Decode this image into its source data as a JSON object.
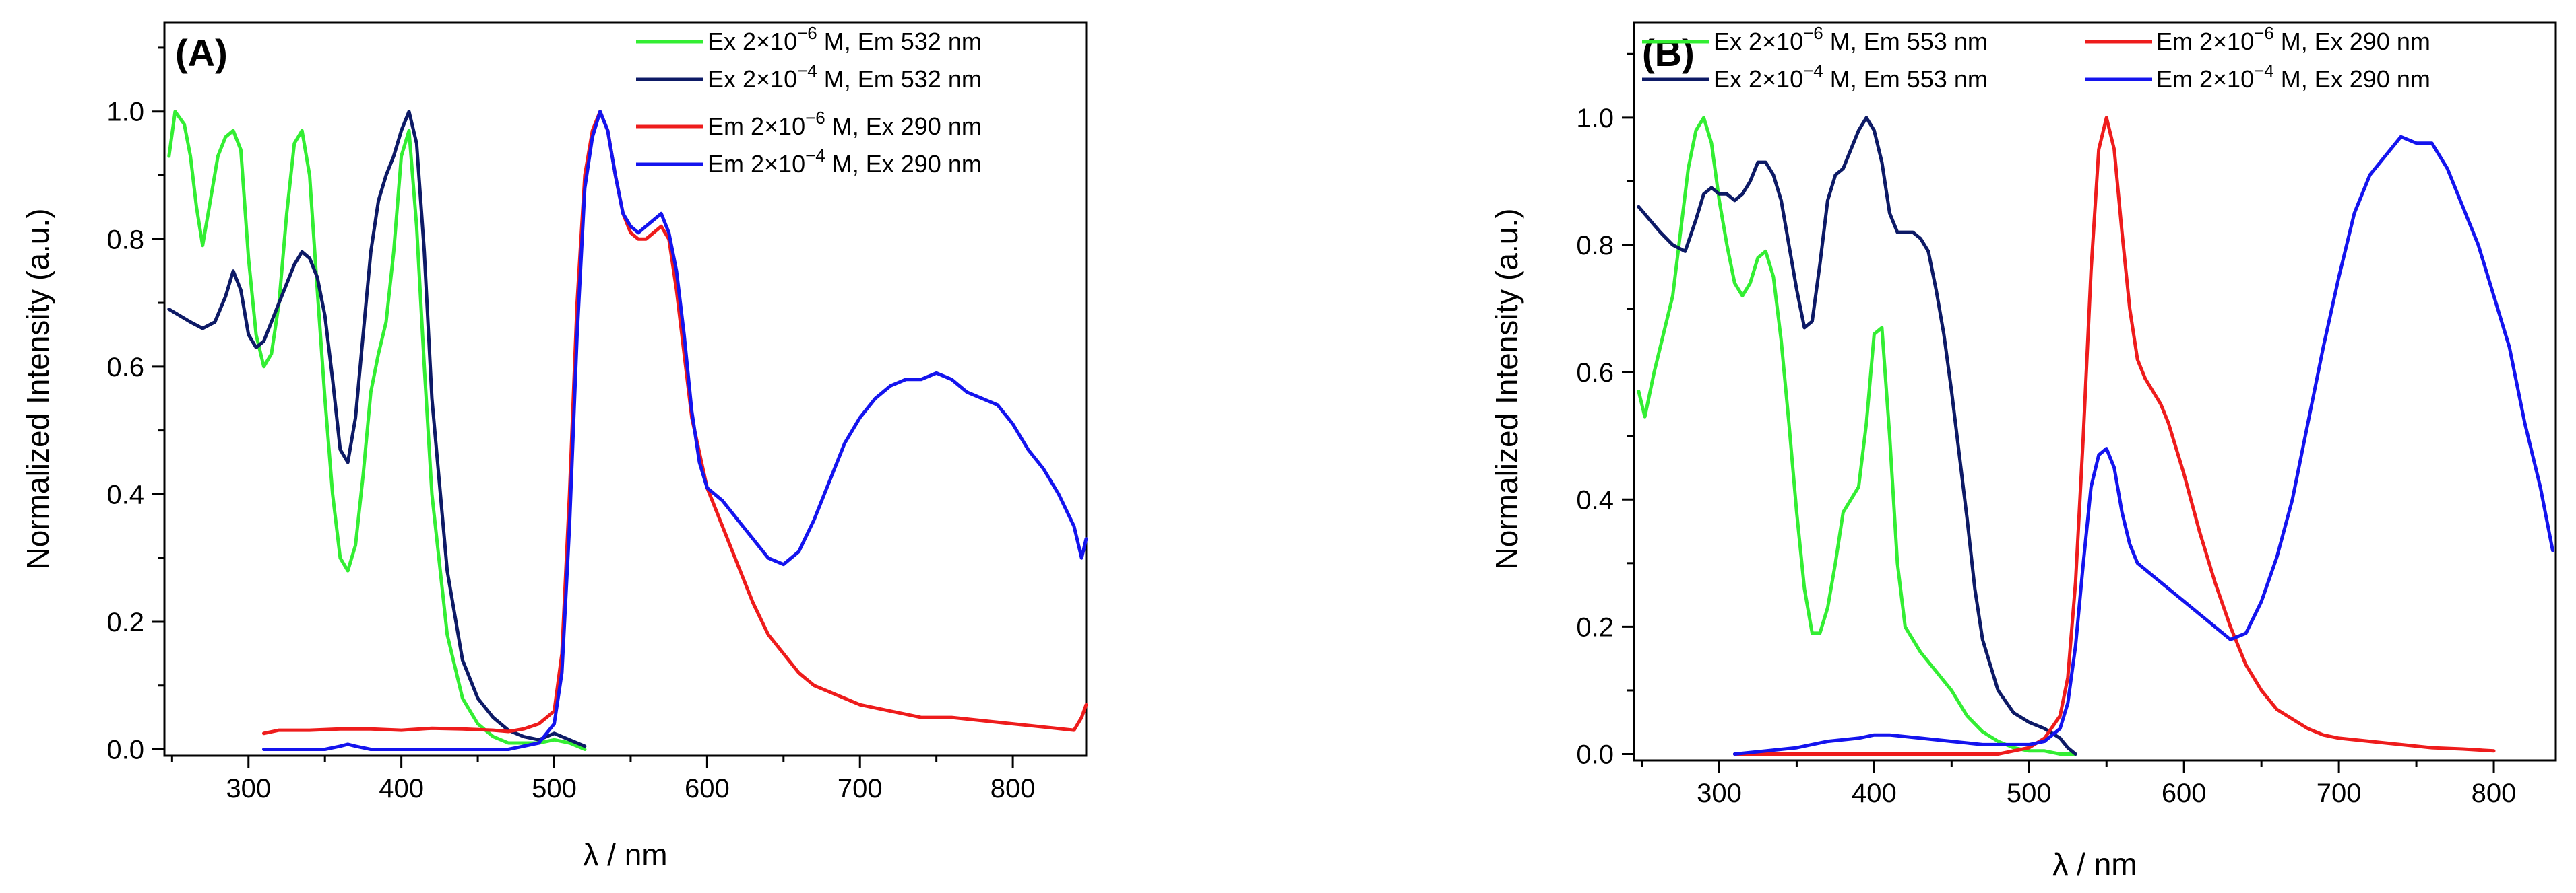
{
  "chart_data": [
    {
      "type": "line",
      "panel_label": "(A)",
      "xlabel": "λ / nm",
      "ylabel": "Normalized Intensity (a.u.)",
      "xlim": [
        245,
        848
      ],
      "ylim": [
        -0.01,
        1.14
      ],
      "xticks": [
        300,
        400,
        500,
        600,
        700,
        800
      ],
      "xtick_labels": [
        "300",
        "400",
        "500",
        "600",
        "700",
        "800"
      ],
      "yticks": [
        0.0,
        0.2,
        0.4,
        0.6,
        0.8,
        1.0
      ],
      "ytick_labels": [
        "0.0",
        "0.2",
        "0.4",
        "0.6",
        "0.8",
        "1.0"
      ],
      "grid": false,
      "legend": {
        "placement": "top-right",
        "entries": [
          {
            "series": 0,
            "prefix": "Ex 2×10",
            "sup": "−6",
            "suffix": " M, Em 532 nm"
          },
          {
            "series": 1,
            "prefix": "Ex 2×10",
            "sup": "−4",
            "suffix": " M, Em 532 nm"
          },
          {
            "series": 2,
            "prefix": "Em 2×10",
            "sup": "−6",
            "suffix": " M, Ex 290 nm"
          },
          {
            "series": 3,
            "prefix": "Em 2×10",
            "sup": "−4",
            "suffix": " M, Ex 290 nm"
          }
        ]
      },
      "series": [
        {
          "name": "Ex 2×10⁻⁶ M, Em 532 nm",
          "color": "#33ee33",
          "x": [
            248,
            252,
            258,
            262,
            266,
            270,
            275,
            280,
            285,
            290,
            295,
            300,
            305,
            310,
            315,
            320,
            325,
            330,
            335,
            340,
            345,
            350,
            355,
            360,
            365,
            370,
            375,
            380,
            385,
            390,
            395,
            400,
            405,
            410,
            415,
            420,
            430,
            440,
            450,
            460,
            470,
            480,
            490,
            500,
            510,
            520
          ],
          "y": [
            0.93,
            1.0,
            0.98,
            0.93,
            0.85,
            0.79,
            0.86,
            0.93,
            0.96,
            0.97,
            0.94,
            0.77,
            0.65,
            0.6,
            0.62,
            0.7,
            0.84,
            0.95,
            0.97,
            0.9,
            0.72,
            0.55,
            0.4,
            0.3,
            0.28,
            0.32,
            0.43,
            0.56,
            0.62,
            0.67,
            0.78,
            0.93,
            0.97,
            0.82,
            0.6,
            0.4,
            0.18,
            0.08,
            0.04,
            0.02,
            0.01,
            0.01,
            0.01,
            0.015,
            0.01,
            0.0
          ]
        },
        {
          "name": "Ex 2×10⁻⁴ M, Em 532 nm",
          "color": "#0d1a66",
          "x": [
            248,
            255,
            262,
            270,
            278,
            285,
            290,
            295,
            300,
            305,
            310,
            315,
            320,
            325,
            330,
            335,
            340,
            345,
            350,
            355,
            360,
            365,
            370,
            375,
            380,
            385,
            390,
            395,
            400,
            405,
            410,
            415,
            420,
            430,
            440,
            450,
            460,
            470,
            480,
            490,
            500,
            510,
            520
          ],
          "y": [
            0.69,
            0.68,
            0.67,
            0.66,
            0.67,
            0.71,
            0.75,
            0.72,
            0.65,
            0.63,
            0.64,
            0.67,
            0.7,
            0.73,
            0.76,
            0.78,
            0.77,
            0.74,
            0.68,
            0.58,
            0.47,
            0.45,
            0.52,
            0.65,
            0.78,
            0.86,
            0.9,
            0.93,
            0.97,
            1.0,
            0.95,
            0.78,
            0.55,
            0.28,
            0.14,
            0.08,
            0.05,
            0.03,
            0.02,
            0.015,
            0.025,
            0.015,
            0.005
          ]
        },
        {
          "name": "Em 2×10⁻⁶ M, Ex 290 nm",
          "color": "#ee1c1c",
          "x": [
            310,
            320,
            340,
            360,
            380,
            400,
            420,
            440,
            460,
            470,
            480,
            490,
            500,
            505,
            510,
            515,
            520,
            525,
            530,
            535,
            540,
            545,
            550,
            555,
            560,
            565,
            570,
            575,
            580,
            585,
            590,
            600,
            610,
            620,
            630,
            640,
            650,
            660,
            670,
            680,
            690,
            700,
            720,
            740,
            760,
            780,
            800,
            820,
            840,
            845,
            848
          ],
          "y": [
            0.025,
            0.03,
            0.03,
            0.032,
            0.032,
            0.03,
            0.033,
            0.032,
            0.03,
            0.028,
            0.032,
            0.04,
            0.06,
            0.15,
            0.4,
            0.7,
            0.9,
            0.97,
            1.0,
            0.97,
            0.9,
            0.84,
            0.81,
            0.8,
            0.8,
            0.81,
            0.82,
            0.8,
            0.72,
            0.62,
            0.52,
            0.41,
            0.35,
            0.29,
            0.23,
            0.18,
            0.15,
            0.12,
            0.1,
            0.09,
            0.08,
            0.07,
            0.06,
            0.05,
            0.05,
            0.045,
            0.04,
            0.035,
            0.03,
            0.05,
            0.07
          ]
        },
        {
          "name": "Em 2×10⁻⁴ M, Ex 290 nm",
          "color": "#1414ee",
          "x": [
            310,
            330,
            350,
            360,
            365,
            370,
            380,
            400,
            420,
            440,
            460,
            470,
            480,
            490,
            500,
            505,
            510,
            515,
            520,
            525,
            530,
            535,
            540,
            545,
            550,
            555,
            560,
            565,
            570,
            575,
            580,
            585,
            590,
            595,
            600,
            610,
            620,
            630,
            640,
            650,
            660,
            670,
            680,
            690,
            700,
            710,
            720,
            730,
            740,
            750,
            760,
            770,
            780,
            790,
            800,
            810,
            820,
            830,
            840,
            845,
            848
          ],
          "y": [
            0.0,
            0.0,
            0.0,
            0.005,
            0.008,
            0.005,
            0.0,
            0.0,
            0.0,
            0.0,
            0.0,
            0.0,
            0.005,
            0.01,
            0.04,
            0.12,
            0.35,
            0.65,
            0.88,
            0.96,
            1.0,
            0.97,
            0.9,
            0.84,
            0.82,
            0.81,
            0.82,
            0.83,
            0.84,
            0.81,
            0.75,
            0.65,
            0.53,
            0.45,
            0.41,
            0.39,
            0.36,
            0.33,
            0.3,
            0.29,
            0.31,
            0.36,
            0.42,
            0.48,
            0.52,
            0.55,
            0.57,
            0.58,
            0.58,
            0.59,
            0.58,
            0.56,
            0.55,
            0.54,
            0.51,
            0.47,
            0.44,
            0.4,
            0.35,
            0.3,
            0.33
          ]
        }
      ]
    },
    {
      "type": "line",
      "panel_label": "(B)",
      "xlabel": "λ / nm",
      "ylabel": "Normalized Intensity (a.u.)",
      "xlim": [
        245,
        840
      ],
      "ylim": [
        -0.01,
        1.15
      ],
      "xticks": [
        300,
        400,
        500,
        600,
        700,
        800
      ],
      "xtick_labels": [
        "300",
        "400",
        "500",
        "600",
        "700",
        "800"
      ],
      "yticks": [
        0.0,
        0.2,
        0.4,
        0.6,
        0.8,
        1.0
      ],
      "ytick_labels": [
        "0.0",
        "0.2",
        "0.4",
        "0.6",
        "0.8",
        "1.0"
      ],
      "grid": false,
      "legend": {
        "placement": "top",
        "entries": [
          {
            "series": 0,
            "prefix": "Ex 2×10",
            "sup": "−6",
            "suffix": " M, Em 553 nm"
          },
          {
            "series": 1,
            "prefix": "Ex 2×10",
            "sup": "−4",
            "suffix": " M, Em 553 nm"
          },
          {
            "series": 2,
            "prefix": "Em 2×10",
            "sup": "−6",
            "suffix": " M, Ex 290 nm"
          },
          {
            "series": 3,
            "prefix": "Em 2×10",
            "sup": "−4",
            "suffix": " M, Ex 290 nm"
          }
        ]
      },
      "series": [
        {
          "name": "Ex 2×10⁻⁶ M, Em 553 nm",
          "color": "#33ee33",
          "x": [
            248,
            252,
            258,
            265,
            270,
            275,
            280,
            285,
            290,
            295,
            300,
            305,
            310,
            315,
            320,
            325,
            330,
            335,
            340,
            345,
            350,
            355,
            360,
            365,
            370,
            375,
            380,
            385,
            390,
            395,
            400,
            405,
            410,
            415,
            420,
            430,
            440,
            450,
            460,
            470,
            480,
            490,
            500,
            510,
            520,
            530
          ],
          "y": [
            0.57,
            0.53,
            0.6,
            0.67,
            0.72,
            0.82,
            0.92,
            0.98,
            1.0,
            0.96,
            0.87,
            0.8,
            0.74,
            0.72,
            0.74,
            0.78,
            0.79,
            0.75,
            0.65,
            0.52,
            0.38,
            0.26,
            0.19,
            0.19,
            0.23,
            0.3,
            0.38,
            0.4,
            0.42,
            0.52,
            0.66,
            0.67,
            0.5,
            0.3,
            0.2,
            0.16,
            0.13,
            0.1,
            0.06,
            0.035,
            0.02,
            0.01,
            0.005,
            0.005,
            0.0,
            0.0
          ]
        },
        {
          "name": "Ex 2×10⁻⁴ M, Em 553 nm",
          "color": "#0d1a66",
          "x": [
            248,
            255,
            262,
            270,
            278,
            285,
            290,
            295,
            300,
            305,
            310,
            315,
            320,
            325,
            330,
            335,
            340,
            345,
            350,
            355,
            360,
            365,
            370,
            375,
            380,
            385,
            390,
            395,
            400,
            405,
            410,
            415,
            420,
            425,
            430,
            435,
            440,
            445,
            450,
            455,
            460,
            465,
            470,
            480,
            490,
            500,
            510,
            520,
            525,
            530
          ],
          "y": [
            0.86,
            0.84,
            0.82,
            0.8,
            0.79,
            0.84,
            0.88,
            0.89,
            0.88,
            0.88,
            0.87,
            0.88,
            0.9,
            0.93,
            0.93,
            0.91,
            0.87,
            0.8,
            0.73,
            0.67,
            0.68,
            0.77,
            0.87,
            0.91,
            0.92,
            0.95,
            0.98,
            1.0,
            0.98,
            0.93,
            0.85,
            0.82,
            0.82,
            0.82,
            0.81,
            0.79,
            0.73,
            0.66,
            0.57,
            0.47,
            0.37,
            0.26,
            0.18,
            0.1,
            0.065,
            0.05,
            0.04,
            0.025,
            0.01,
            0.0
          ]
        },
        {
          "name": "Em 2×10⁻⁶ M, Ex 290 nm",
          "color": "#ee1c1c",
          "x": [
            310,
            330,
            350,
            400,
            450,
            480,
            500,
            510,
            520,
            525,
            530,
            535,
            540,
            545,
            550,
            555,
            560,
            565,
            570,
            575,
            580,
            585,
            590,
            595,
            600,
            610,
            620,
            630,
            640,
            650,
            660,
            670,
            680,
            690,
            700,
            720,
            740,
            760,
            780,
            800
          ],
          "y": [
            0.0,
            0.0,
            0.0,
            0.0,
            0.0,
            0.0,
            0.01,
            0.025,
            0.06,
            0.12,
            0.27,
            0.5,
            0.76,
            0.95,
            1.0,
            0.95,
            0.82,
            0.7,
            0.62,
            0.59,
            0.57,
            0.55,
            0.52,
            0.48,
            0.44,
            0.35,
            0.27,
            0.2,
            0.14,
            0.1,
            0.07,
            0.055,
            0.04,
            0.03,
            0.025,
            0.02,
            0.015,
            0.01,
            0.008,
            0.005
          ]
        },
        {
          "name": "Em 2×10⁻⁴ M, Ex 290 nm",
          "color": "#1414ee",
          "x": [
            310,
            330,
            350,
            370,
            390,
            400,
            410,
            430,
            450,
            470,
            490,
            500,
            510,
            520,
            525,
            530,
            535,
            540,
            545,
            550,
            555,
            560,
            565,
            570,
            580,
            590,
            600,
            610,
            620,
            630,
            640,
            650,
            660,
            670,
            680,
            690,
            700,
            710,
            720,
            730,
            740,
            750,
            760,
            770,
            780,
            790,
            800,
            810,
            820,
            830,
            838
          ],
          "y": [
            0.0,
            0.005,
            0.01,
            0.02,
            0.025,
            0.03,
            0.03,
            0.025,
            0.02,
            0.015,
            0.015,
            0.015,
            0.02,
            0.04,
            0.08,
            0.17,
            0.3,
            0.42,
            0.47,
            0.48,
            0.45,
            0.38,
            0.33,
            0.3,
            0.28,
            0.26,
            0.24,
            0.22,
            0.2,
            0.18,
            0.19,
            0.24,
            0.31,
            0.4,
            0.52,
            0.64,
            0.75,
            0.85,
            0.91,
            0.94,
            0.97,
            0.96,
            0.96,
            0.92,
            0.86,
            0.8,
            0.72,
            0.64,
            0.52,
            0.42,
            0.32
          ]
        }
      ]
    }
  ]
}
